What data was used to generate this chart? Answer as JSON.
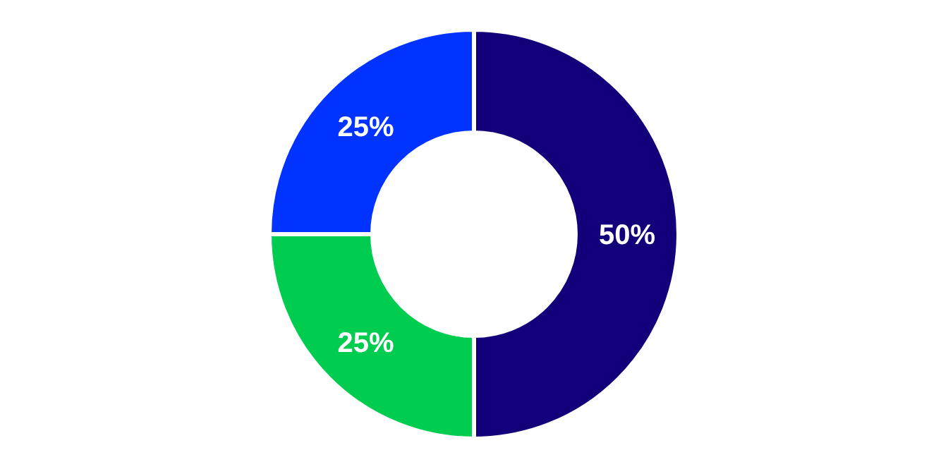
{
  "chart_data": {
    "type": "donut",
    "categories": [
      null,
      null,
      null
    ],
    "values": [
      50,
      25,
      25
    ],
    "colors": [
      "#12007a",
      "#00cc50",
      "#0033ff"
    ],
    "value_labels": [
      "50%",
      "25%",
      "25%"
    ]
  }
}
